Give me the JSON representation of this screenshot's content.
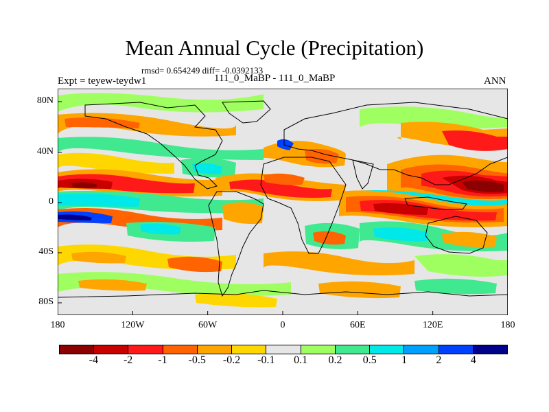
{
  "title": "Mean Annual Cycle (Precipitation)",
  "stats": "rmsd= 0.654249 diff= -0.0392133",
  "expt": "Expt = teyew-teydw1",
  "case": "111_0_MaBP - 111_0_MaBP",
  "season": "ANN",
  "map": {
    "y_ticks": [
      "80N",
      "40N",
      "0",
      "40S",
      "80S"
    ],
    "x_ticks": [
      "180",
      "120W",
      "60W",
      "0",
      "60E",
      "120E",
      "180"
    ],
    "background_color": "#e6e6e6"
  },
  "colorbar": {
    "labels": [
      "-4",
      "-2",
      "-1",
      "-0.5",
      "-0.2",
      "-0.1",
      "0.1",
      "0.2",
      "0.5",
      "1",
      "2",
      "4"
    ],
    "colors": [
      "#8b0000",
      "#c80000",
      "#ff1a1a",
      "#ff6400",
      "#ffa500",
      "#ffd700",
      "#e6e6e6",
      "#a0ff60",
      "#40e890",
      "#00e8e8",
      "#00a0ff",
      "#0040ff",
      "#00008b"
    ]
  }
}
